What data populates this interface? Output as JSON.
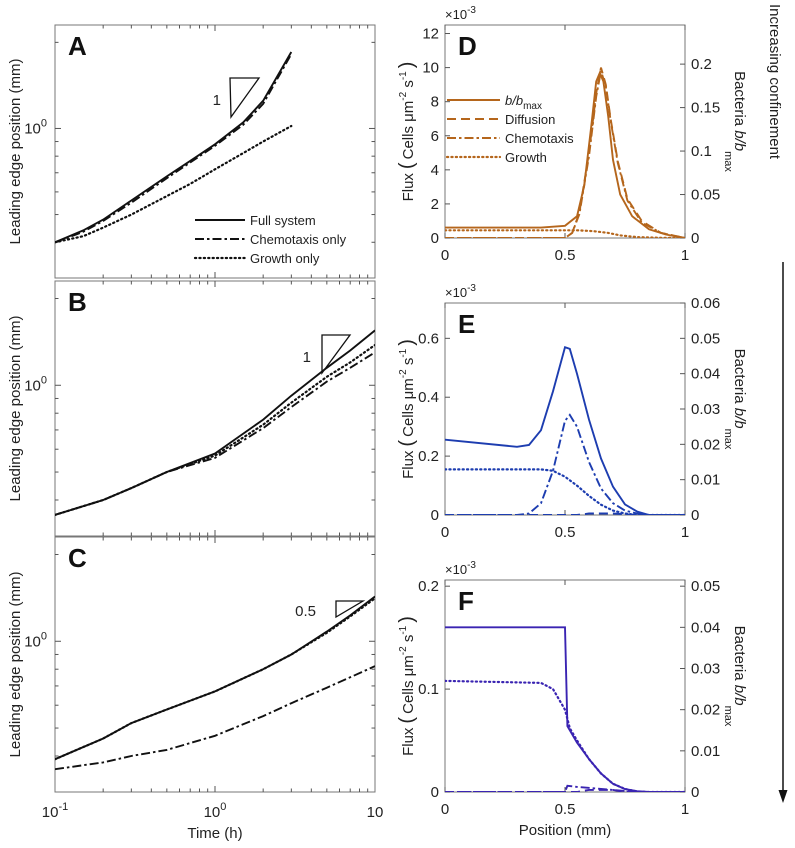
{
  "figure": {
    "side_label": "Increasing confinement",
    "left_xlabel": "Time (h)",
    "right_xlabel": "Position (mm)",
    "colors": {
      "D": "#b5661c",
      "E": "#1d3db0",
      "F": "#3a24b2",
      "left": "#111111"
    }
  },
  "chart_data": [
    {
      "panel": "A",
      "type": "line",
      "xscale": "log",
      "yscale": "log",
      "xlim": [
        0.1,
        10
      ],
      "ylim": [
        0.3,
        2.3
      ],
      "ylabel": "Leading edge position (mm)",
      "yticks": [
        {
          "value": 1,
          "base": "10",
          "exp": "0"
        }
      ],
      "xticks": [],
      "slope_label": "1",
      "legend": {
        "placement": "bottom-right",
        "entries": [
          "Full system",
          "Chemotaxis only",
          "Growth only"
        ]
      },
      "series": [
        {
          "name": "Full system",
          "style": "solid",
          "x": [
            0.1,
            0.15,
            0.2,
            0.3,
            0.5,
            0.7,
            1,
            1.5,
            2,
            3
          ],
          "y": [
            0.4,
            0.44,
            0.48,
            0.56,
            0.68,
            0.77,
            0.88,
            1.05,
            1.25,
            1.85
          ]
        },
        {
          "name": "Chemotaxis only",
          "style": "dashdot",
          "x": [
            0.1,
            0.15,
            0.2,
            0.3,
            0.5,
            0.7,
            1,
            1.5,
            2,
            3
          ],
          "y": [
            0.4,
            0.435,
            0.475,
            0.55,
            0.67,
            0.76,
            0.87,
            1.03,
            1.22,
            1.82
          ]
        },
        {
          "name": "Growth only",
          "style": "dotted",
          "x": [
            0.1,
            0.15,
            0.2,
            0.3,
            0.5,
            0.7,
            1,
            1.5,
            2,
            3
          ],
          "y": [
            0.4,
            0.42,
            0.45,
            0.5,
            0.58,
            0.64,
            0.72,
            0.82,
            0.9,
            1.02
          ]
        }
      ]
    },
    {
      "panel": "B",
      "type": "line",
      "xscale": "log",
      "yscale": "log",
      "xlim": [
        0.1,
        10
      ],
      "ylim": [
        0.3,
        2.3
      ],
      "ylabel": "Leading edge position (mm)",
      "yticks": [
        {
          "value": 1,
          "base": "10",
          "exp": "0"
        }
      ],
      "xticks": [],
      "slope_label": "1",
      "series": [
        {
          "name": "Full system",
          "style": "solid",
          "x": [
            0.1,
            0.2,
            0.3,
            0.5,
            1,
            2,
            3,
            5,
            7,
            10
          ],
          "y": [
            0.355,
            0.4,
            0.44,
            0.5,
            0.58,
            0.76,
            0.92,
            1.15,
            1.32,
            1.55
          ]
        },
        {
          "name": "Chemotaxis only",
          "style": "dashdot",
          "x": [
            0.1,
            0.2,
            0.3,
            0.5,
            1,
            2,
            3,
            5,
            7,
            10
          ],
          "y": [
            0.355,
            0.4,
            0.44,
            0.5,
            0.56,
            0.71,
            0.84,
            1.03,
            1.15,
            1.3
          ]
        },
        {
          "name": "Growth only",
          "style": "dotted",
          "x": [
            0.1,
            0.2,
            0.3,
            0.5,
            1,
            2,
            3,
            5,
            7,
            10
          ],
          "y": [
            0.355,
            0.4,
            0.44,
            0.5,
            0.57,
            0.73,
            0.87,
            1.07,
            1.2,
            1.38
          ]
        }
      ]
    },
    {
      "panel": "C",
      "type": "line",
      "xscale": "log",
      "yscale": "log",
      "xlim": [
        0.1,
        10
      ],
      "ylim": [
        0.3,
        2.3
      ],
      "ylabel": "Leading edge position (mm)",
      "xlabel": "Time (h)",
      "yticks": [
        {
          "value": 1,
          "base": "10",
          "exp": "0"
        }
      ],
      "xticks": [
        {
          "value": 0.1,
          "base": "10",
          "exp": "-1"
        },
        {
          "value": 1,
          "base": "10",
          "exp": "0"
        },
        {
          "value": 10,
          "base": "10",
          "exp": ""
        }
      ],
      "slope_label": "0.5",
      "series": [
        {
          "name": "Full system",
          "style": "solid",
          "x": [
            0.1,
            0.2,
            0.3,
            0.5,
            1,
            2,
            3,
            5,
            7,
            10
          ],
          "y": [
            0.39,
            0.46,
            0.52,
            0.58,
            0.67,
            0.8,
            0.9,
            1.08,
            1.23,
            1.43
          ]
        },
        {
          "name": "Growth only",
          "style": "dotted",
          "x": [
            0.1,
            0.2,
            0.3,
            0.5,
            1,
            2,
            3,
            5,
            7,
            10
          ],
          "y": [
            0.39,
            0.46,
            0.52,
            0.58,
            0.67,
            0.8,
            0.9,
            1.07,
            1.22,
            1.41
          ]
        },
        {
          "name": "Chemotaxis only",
          "style": "dashdot",
          "x": [
            0.1,
            0.2,
            0.3,
            0.5,
            1,
            2,
            3,
            5,
            7,
            10
          ],
          "y": [
            0.36,
            0.38,
            0.4,
            0.42,
            0.47,
            0.55,
            0.61,
            0.69,
            0.75,
            0.82
          ]
        }
      ]
    },
    {
      "panel": "D",
      "type": "line",
      "color_key": "D",
      "xlim": [
        0,
        1
      ],
      "ylim": [
        0,
        12.5
      ],
      "ylim_right": [
        0,
        0.245
      ],
      "multiplier": {
        "base": "×10",
        "exp": "-3"
      },
      "ylabel": {
        "main": "Flux",
        "paren_open": "(",
        "text": "Cells  μm",
        "exp1": "-2",
        "mid": " s",
        "exp2": "-1",
        "paren_close": ")"
      },
      "ylabel_right": {
        "main": "Bacteria  ",
        "var": "b/b",
        "sub": "max"
      },
      "xticks": [
        0,
        0.5,
        1
      ],
      "yticks": [
        0,
        2,
        4,
        6,
        8,
        10,
        12
      ],
      "yticks_right": [
        0,
        0.05,
        0.1,
        0.15,
        0.2
      ],
      "legend": {
        "placement": "top-left",
        "entries": [
          {
            "var": "b/b",
            "sub": "max",
            "style": "solid"
          },
          {
            "label": "Diffusion",
            "style": "dashed"
          },
          {
            "label": "Chemotaxis",
            "style": "dashdot"
          },
          {
            "label": "Growth",
            "style": "dotted"
          }
        ]
      },
      "series": [
        {
          "name": "b/bmax",
          "axis": "right",
          "style": "solid",
          "x": [
            0,
            0.4,
            0.5,
            0.55,
            0.58,
            0.61,
            0.63,
            0.645,
            0.66,
            0.68,
            0.7,
            0.73,
            0.78,
            0.85,
            0.92,
            1
          ],
          "y": [
            0.012,
            0.012,
            0.014,
            0.025,
            0.06,
            0.13,
            0.18,
            0.19,
            0.18,
            0.14,
            0.09,
            0.05,
            0.025,
            0.01,
            0.004,
            0
          ]
        },
        {
          "name": "Diffusion",
          "axis": "left",
          "style": "dashed",
          "x": [
            0,
            0.5,
            0.53,
            0.56,
            0.6,
            0.63,
            0.65,
            0.67,
            0.69,
            0.72,
            0.76,
            0.82,
            0.9,
            1
          ],
          "y": [
            0,
            0,
            0.3,
            1.5,
            5,
            8.5,
            10,
            9,
            7,
            4.5,
            2.3,
            1,
            0.3,
            0
          ]
        },
        {
          "name": "Chemotaxis",
          "axis": "left",
          "style": "dashdot",
          "x": [
            0,
            0.5,
            0.53,
            0.56,
            0.6,
            0.63,
            0.65,
            0.67,
            0.69,
            0.72,
            0.76,
            0.82,
            0.9,
            1
          ],
          "y": [
            0,
            0,
            0.3,
            1.4,
            4.8,
            8.3,
            9.8,
            8.9,
            6.9,
            4.4,
            2.2,
            0.9,
            0.3,
            0
          ]
        },
        {
          "name": "Growth",
          "axis": "left",
          "style": "dotted",
          "x": [
            0,
            0.55,
            0.62,
            0.68,
            0.73,
            0.8,
            0.9,
            1
          ],
          "y": [
            0.45,
            0.45,
            0.4,
            0.3,
            0.15,
            0.05,
            0.01,
            0
          ]
        }
      ]
    },
    {
      "panel": "E",
      "type": "line",
      "color_key": "E",
      "xlim": [
        0,
        1
      ],
      "ylim": [
        0,
        0.72
      ],
      "ylim_right": [
        0,
        0.06
      ],
      "multiplier": {
        "base": "×10",
        "exp": "-3"
      },
      "ylabel": {
        "main": "Flux",
        "paren_open": "(",
        "text": "Cells  μm",
        "exp1": "-2",
        "mid": " s",
        "exp2": "-1",
        "paren_close": ")"
      },
      "ylabel_right": {
        "main": "Bacteria  ",
        "var": "b/b",
        "sub": "max"
      },
      "xticks": [
        0,
        0.5,
        1
      ],
      "yticks": [
        0,
        0.2,
        0.4,
        0.6
      ],
      "yticks_right": [
        0,
        0.01,
        0.02,
        0.03,
        0.04,
        0.05,
        0.06
      ],
      "series": [
        {
          "name": "b/bmax",
          "axis": "right",
          "style": "solid",
          "x": [
            0,
            0.3,
            0.35,
            0.4,
            0.45,
            0.5,
            0.52,
            0.55,
            0.6,
            0.65,
            0.7,
            0.75,
            0.8,
            0.85,
            1
          ],
          "y": [
            0.0213,
            0.0193,
            0.0198,
            0.024,
            0.035,
            0.0475,
            0.047,
            0.04,
            0.027,
            0.016,
            0.008,
            0.003,
            0.001,
            0,
            0
          ]
        },
        {
          "name": "Diffusion",
          "axis": "left",
          "style": "dashed",
          "x": [
            0,
            0.55,
            0.6,
            0.7,
            0.8,
            1
          ],
          "y": [
            0,
            0,
            0.005,
            0.005,
            0,
            0
          ]
        },
        {
          "name": "Chemotaxis",
          "axis": "left",
          "style": "dashdot",
          "x": [
            0,
            0.3,
            0.35,
            0.4,
            0.45,
            0.5,
            0.52,
            0.55,
            0.6,
            0.65,
            0.7,
            0.75,
            0.8,
            0.85,
            1
          ],
          "y": [
            0,
            0,
            0.005,
            0.04,
            0.15,
            0.32,
            0.34,
            0.3,
            0.18,
            0.09,
            0.04,
            0.015,
            0.005,
            0,
            0
          ]
        },
        {
          "name": "Growth",
          "axis": "left",
          "style": "dotted",
          "x": [
            0,
            0.4,
            0.45,
            0.5,
            0.55,
            0.6,
            0.65,
            0.7,
            0.75,
            0.8,
            1
          ],
          "y": [
            0.155,
            0.155,
            0.15,
            0.13,
            0.1,
            0.065,
            0.035,
            0.015,
            0.005,
            0,
            0
          ]
        }
      ]
    },
    {
      "panel": "F",
      "type": "line",
      "color_key": "F",
      "xlim": [
        0,
        1
      ],
      "ylim": [
        0,
        0.206
      ],
      "ylim_right": [
        0,
        0.0515
      ],
      "multiplier": {
        "base": "×10",
        "exp": "-3"
      },
      "ylabel": {
        "main": "Flux",
        "paren_open": "(",
        "text": "Cells  μm",
        "exp1": "-2",
        "mid": " s",
        "exp2": "-1",
        "paren_close": ")"
      },
      "ylabel_right": {
        "main": "Bacteria  ",
        "var": "b/b",
        "sub": "max"
      },
      "xlabel": "Position (mm)",
      "xticks": [
        0,
        0.5,
        1
      ],
      "yticks": [
        0,
        0.1,
        0.2
      ],
      "yticks_right": [
        0,
        0.01,
        0.02,
        0.03,
        0.04,
        0.05
      ],
      "series": [
        {
          "name": "b/bmax",
          "axis": "right",
          "style": "solid",
          "x": [
            0,
            0.5,
            0.51,
            0.55,
            0.6,
            0.65,
            0.7,
            0.75,
            0.8,
            0.85,
            1
          ],
          "y": [
            0.04,
            0.04,
            0.016,
            0.012,
            0.008,
            0.0045,
            0.002,
            0.0007,
            0.0002,
            0,
            0
          ]
        },
        {
          "name": "Diffusion",
          "axis": "left",
          "style": "dashed",
          "x": [
            0,
            0.55,
            0.6,
            0.7,
            0.75,
            1
          ],
          "y": [
            0,
            0,
            0.002,
            0.002,
            0,
            0
          ]
        },
        {
          "name": "Chemotaxis",
          "axis": "left",
          "style": "dashdot",
          "x": [
            0,
            0.5,
            0.51,
            0.55,
            0.65,
            0.75,
            0.8,
            1
          ],
          "y": [
            0,
            0,
            0.006,
            0.005,
            0.003,
            0.001,
            0,
            0
          ]
        },
        {
          "name": "Growth",
          "axis": "left",
          "style": "dotted",
          "x": [
            0,
            0.4,
            0.45,
            0.5,
            0.52,
            0.55,
            0.6,
            0.65,
            0.7,
            0.75,
            0.8,
            0.85,
            1
          ],
          "y": [
            0.108,
            0.106,
            0.1,
            0.08,
            0.062,
            0.05,
            0.032,
            0.018,
            0.008,
            0.003,
            0.0005,
            0,
            0
          ]
        }
      ]
    }
  ]
}
